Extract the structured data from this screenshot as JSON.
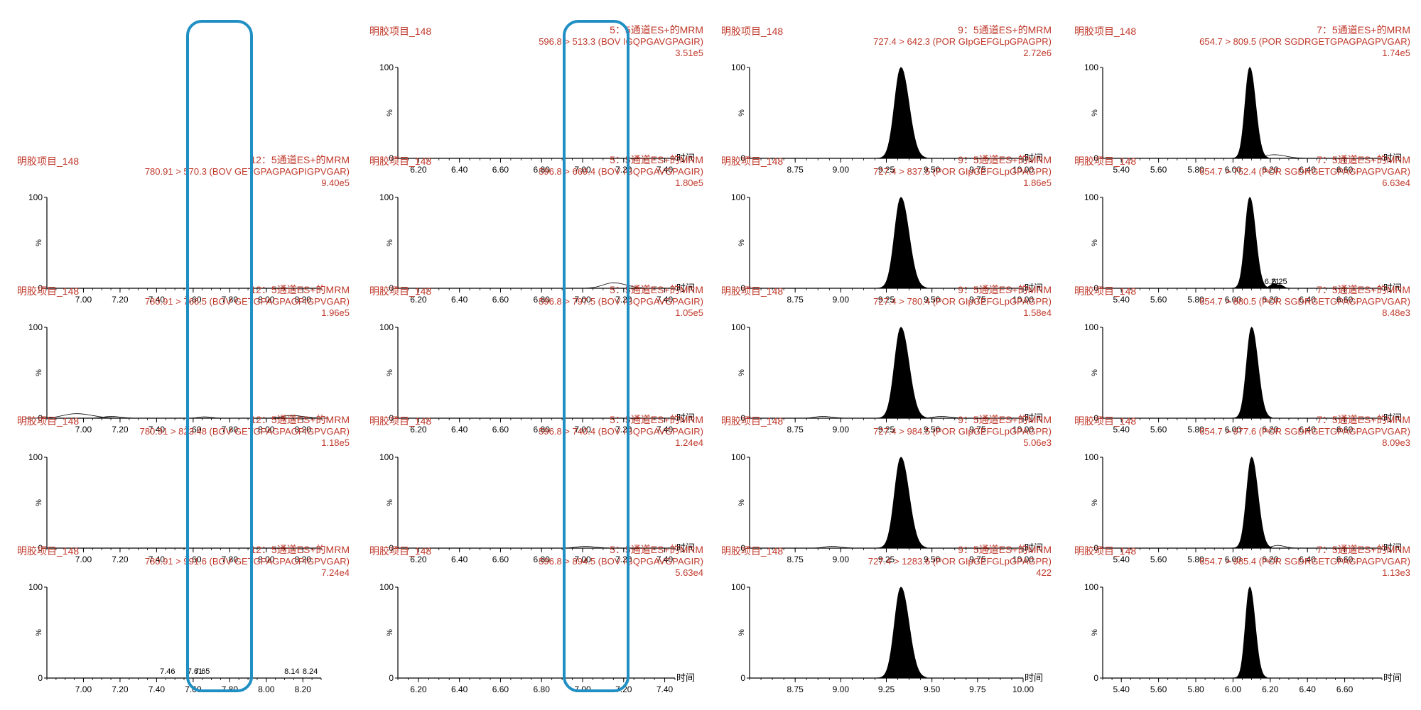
{
  "colors": {
    "header_text": "#c0392b",
    "peak_fill": "#000000",
    "axis": "#000000",
    "highlight_box": "#1f8fc4"
  },
  "chart_data": [
    {
      "column": 0,
      "row": 1,
      "type": "area",
      "sample": "明胶项目_148",
      "channel": "12：5通道ES+的MRM",
      "transition": "780.91 > 570.3 (BOV GETGPAGPAGPIGPVGAR)",
      "intensity": "9.40e5",
      "xlabel": "",
      "ylabel": "%",
      "ylim": [
        0,
        100
      ],
      "xlim": [
        6.8,
        8.3
      ],
      "xticks": [
        "7.00",
        "7.20",
        "7.40",
        "7.60",
        "7.80",
        "8.00",
        "8.20"
      ],
      "yticks": [
        "0",
        "100"
      ],
      "peaks": [],
      "peak_labels": []
    },
    {
      "column": 0,
      "row": 2,
      "type": "area",
      "sample": "明胶项目_148",
      "channel": "12：5通道ES+的MRM",
      "transition": "780.91 > 766.5 (BOV GETGPAGPAGPIGPVGAR)",
      "intensity": "1.96e5",
      "xlabel": "",
      "ylabel": "%",
      "ylim": [
        0,
        100
      ],
      "xlim": [
        6.8,
        8.3
      ],
      "xticks": [
        "7.00",
        "7.20",
        "7.40",
        "7.60",
        "7.80",
        "8.00",
        "8.20"
      ],
      "yticks": [
        "0",
        "100"
      ],
      "peaks": [
        {
          "x": 6.96,
          "h": 5,
          "w": 0.07,
          "fill": false
        },
        {
          "x": 7.15,
          "h": 2,
          "w": 0.04,
          "fill": false
        },
        {
          "x": 7.66,
          "h": 1.5,
          "w": 0.03,
          "fill": false
        },
        {
          "x": 8.14,
          "h": 3,
          "w": 0.05,
          "fill": false
        }
      ],
      "peak_labels": []
    },
    {
      "column": 0,
      "row": 3,
      "type": "area",
      "sample": "明胶项目_148",
      "channel": "12：5通道ES+的MRM",
      "transition": "780.91 > 823.48 (BOV GETGPAGPAGPIGPVGAR)",
      "intensity": "1.18e5",
      "xlabel": "",
      "ylabel": "%",
      "ylim": [
        0,
        100
      ],
      "xlim": [
        6.8,
        8.3
      ],
      "xticks": [
        "7.00",
        "7.20",
        "7.40",
        "7.60",
        "7.80",
        "8.00",
        "8.20"
      ],
      "yticks": [
        "0",
        "100"
      ],
      "peaks": [],
      "peak_labels": []
    },
    {
      "column": 0,
      "row": 4,
      "type": "area",
      "sample": "明胶项目_148",
      "channel": "12：5通道ES+的MRM",
      "transition": "780.91 > 991.6 (BOV GETGPAGPAGPIGPVGAR)",
      "intensity": "7.24e4",
      "xlabel": "",
      "ylabel": "%",
      "ylim": [
        0,
        100
      ],
      "xlim": [
        6.8,
        8.3
      ],
      "xticks": [
        "7.00",
        "7.20",
        "7.40",
        "7.60",
        "7.80",
        "8.00",
        "8.20"
      ],
      "yticks": [
        "0",
        "100"
      ],
      "peaks": [],
      "peak_labels": [
        {
          "x": 7.46,
          "text": "7.46"
        },
        {
          "x": 7.61,
          "text": "7.61"
        },
        {
          "x": 7.65,
          "text": "7.65"
        },
        {
          "x": 8.14,
          "text": "8.14"
        },
        {
          "x": 8.24,
          "text": "8.24"
        }
      ]
    },
    {
      "column": 1,
      "row": 0,
      "type": "area",
      "sample": "明胶项目_148",
      "channel": "5：5通道ES+的MRM",
      "transition": "596.8 > 513.3 (BOV IGQPGAVGPAGIR)",
      "intensity": "3.51e5",
      "xlabel": "时间",
      "ylabel": "%",
      "ylim": [
        0,
        100
      ],
      "xlim": [
        6.1,
        7.45
      ],
      "xticks": [
        "6.20",
        "6.40",
        "6.60",
        "6.80",
        "7.00",
        "7.20",
        "7.40"
      ],
      "yticks": [
        "0",
        "100"
      ],
      "peaks": [],
      "peak_labels": []
    },
    {
      "column": 1,
      "row": 1,
      "type": "area",
      "sample": "明胶项目_148",
      "channel": "5：5通道ES+的MRM",
      "transition": "596.8 > 669.4 (BOV IGQPGAVGPAGIR)",
      "intensity": "1.80e5",
      "xlabel": "时间",
      "ylabel": "%",
      "ylim": [
        0,
        100
      ],
      "xlim": [
        6.1,
        7.45
      ],
      "xticks": [
        "6.20",
        "6.40",
        "6.60",
        "6.80",
        "7.00",
        "7.20",
        "7.40"
      ],
      "yticks": [
        "0",
        "100"
      ],
      "peaks": [
        {
          "x": 7.15,
          "h": 6,
          "w": 0.05,
          "fill": false
        }
      ],
      "peak_labels": []
    },
    {
      "column": 1,
      "row": 2,
      "type": "area",
      "sample": "明胶项目_148",
      "channel": "5：5通道ES+的MRM",
      "transition": "596.8 > 797.5 (BOV IGQPGAVGPAGIR)",
      "intensity": "1.05e5",
      "xlabel": "时间",
      "ylabel": "%",
      "ylim": [
        0,
        100
      ],
      "xlim": [
        6.1,
        7.45
      ],
      "xticks": [
        "6.20",
        "6.40",
        "6.60",
        "6.80",
        "7.00",
        "7.20",
        "7.40"
      ],
      "yticks": [
        "0",
        "100"
      ],
      "peaks": [],
      "peak_labels": []
    },
    {
      "column": 1,
      "row": 3,
      "type": "area",
      "sample": "明胶项目_148",
      "channel": "5：5通道ES+的MRM",
      "transition": "596.8 > 740.4 (BOV IGQPGAVGPAGIR)",
      "intensity": "1.24e4",
      "xlabel": "时间",
      "ylabel": "%",
      "ylim": [
        0,
        100
      ],
      "xlim": [
        6.1,
        7.45
      ],
      "xticks": [
        "6.20",
        "6.40",
        "6.60",
        "6.80",
        "7.00",
        "7.20",
        "7.40"
      ],
      "yticks": [
        "0",
        "100"
      ],
      "peaks": [
        {
          "x": 7.01,
          "h": 2,
          "w": 0.04,
          "fill": false
        }
      ],
      "peak_labels": []
    },
    {
      "column": 1,
      "row": 4,
      "type": "area",
      "sample": "明胶项目_148",
      "channel": "5：5通道ES+的MRM",
      "transition": "596.8 > 894.5 (BOV IGQPGAVGPAGIR)",
      "intensity": "5.63e4",
      "xlabel": "时间",
      "ylabel": "%",
      "ylim": [
        0,
        100
      ],
      "xlim": [
        6.1,
        7.45
      ],
      "xticks": [
        "6.20",
        "6.40",
        "6.60",
        "6.80",
        "7.00",
        "7.20",
        "7.40"
      ],
      "yticks": [
        "0",
        "100"
      ],
      "peaks": [],
      "peak_labels": []
    },
    {
      "column": 2,
      "row": 0,
      "type": "area",
      "sample": "明胶项目_148",
      "channel": "9：5通道ES+的MRM",
      "transition": "727.4 > 642.3 (POR GIpGEFGLpGPAGPR)",
      "intensity": "2.72e6",
      "xlabel": "时间",
      "ylabel": "%",
      "ylim": [
        0,
        100
      ],
      "xlim": [
        8.5,
        10.0
      ],
      "xticks": [
        "8.75",
        "9.00",
        "9.25",
        "9.50",
        "9.75",
        "10.00"
      ],
      "yticks": [
        "0",
        "100"
      ],
      "peaks": [
        {
          "x": 9.33,
          "h": 100,
          "w": 0.035,
          "fill": true
        }
      ],
      "peak_labels": []
    },
    {
      "column": 2,
      "row": 1,
      "type": "area",
      "sample": "明胶项目_148",
      "channel": "9：5通道ES+的MRM",
      "transition": "727.4 > 837.5 (POR GIpGEFGLpGPAGPR)",
      "intensity": "1.86e5",
      "xlabel": "时间",
      "ylabel": "%",
      "ylim": [
        0,
        100
      ],
      "xlim": [
        8.5,
        10.0
      ],
      "xticks": [
        "8.75",
        "9.00",
        "9.25",
        "9.50",
        "9.75",
        "10.00"
      ],
      "yticks": [
        "0",
        "100"
      ],
      "peaks": [
        {
          "x": 9.33,
          "h": 100,
          "w": 0.035,
          "fill": true
        }
      ],
      "peak_labels": []
    },
    {
      "column": 2,
      "row": 2,
      "type": "area",
      "sample": "明胶项目_148",
      "channel": "9：5通道ES+的MRM",
      "transition": "727.4 > 780.4 (POR GIpGEFGLpGPAGPR)",
      "intensity": "1.58e4",
      "xlabel": "时间",
      "ylabel": "%",
      "ylim": [
        0,
        100
      ],
      "xlim": [
        8.5,
        10.0
      ],
      "xticks": [
        "8.75",
        "9.00",
        "9.25",
        "9.50",
        "9.75",
        "10.00"
      ],
      "yticks": [
        "0",
        "100"
      ],
      "peaks": [
        {
          "x": 9.33,
          "h": 100,
          "w": 0.035,
          "fill": true
        },
        {
          "x": 8.9,
          "h": 2,
          "w": 0.04,
          "fill": false
        },
        {
          "x": 9.55,
          "h": 2,
          "w": 0.04,
          "fill": false
        }
      ],
      "peak_labels": []
    },
    {
      "column": 2,
      "row": 3,
      "type": "area",
      "sample": "明胶项目_148",
      "channel": "9：5通道ES+的MRM",
      "transition": "727.4 > 984.5 (POR GIpGEFGLpGPAGPR)",
      "intensity": "5.06e3",
      "xlabel": "时间",
      "ylabel": "%",
      "ylim": [
        0,
        100
      ],
      "xlim": [
        8.5,
        10.0
      ],
      "xticks": [
        "8.75",
        "9.00",
        "9.25",
        "9.50",
        "9.75",
        "10.00"
      ],
      "yticks": [
        "0",
        "100"
      ],
      "peaks": [
        {
          "x": 9.33,
          "h": 100,
          "w": 0.035,
          "fill": true
        },
        {
          "x": 8.95,
          "h": 2,
          "w": 0.04,
          "fill": false
        }
      ],
      "peak_labels": []
    },
    {
      "column": 2,
      "row": 4,
      "type": "area",
      "sample": "明胶项目_148",
      "channel": "9：5通道ES+的MRM",
      "transition": "727.4 > 1283.6 (POR GIpGEFGLpGPAGPR)",
      "intensity": "422",
      "xlabel": "时间",
      "ylabel": "%",
      "ylim": [
        0,
        100
      ],
      "xlim": [
        8.5,
        10.0
      ],
      "xticks": [
        "8.75",
        "9.00",
        "9.25",
        "9.50",
        "9.75",
        "10.00"
      ],
      "yticks": [
        "0",
        "100"
      ],
      "peaks": [
        {
          "x": 9.33,
          "h": 100,
          "w": 0.035,
          "fill": true
        }
      ],
      "peak_labels": []
    },
    {
      "column": 3,
      "row": 0,
      "type": "area",
      "sample": "明胶项目_148",
      "channel": "7：5通道ES+的MRM",
      "transition": "654.7 > 809.5 (POR SGDRGETGPAGPAGPVGAR)",
      "intensity": "1.74e5",
      "xlabel": "时间",
      "ylabel": "%",
      "ylim": [
        0,
        100
      ],
      "xlim": [
        5.3,
        6.8
      ],
      "xticks": [
        "5.40",
        "5.60",
        "5.80",
        "6.00",
        "6.20",
        "6.40",
        "6.60"
      ],
      "yticks": [
        "0",
        "100"
      ],
      "peaks": [
        {
          "x": 6.09,
          "h": 100,
          "w": 0.025,
          "fill": true
        },
        {
          "x": 6.22,
          "h": 4,
          "w": 0.05,
          "fill": false
        }
      ],
      "peak_labels": []
    },
    {
      "column": 3,
      "row": 1,
      "type": "area",
      "sample": "明胶项目_148",
      "channel": "7：5通道ES+的MRM",
      "transition": "654.7 > 752.4 (POR SGDRGETGPAGPAGPVGAR)",
      "intensity": "6.63e4",
      "xlabel": "时间",
      "ylabel": "%",
      "ylim": [
        0,
        100
      ],
      "xlim": [
        5.3,
        6.8
      ],
      "xticks": [
        "5.40",
        "5.60",
        "5.80",
        "6.00",
        "6.20",
        "6.40",
        "6.60"
      ],
      "yticks": [
        "0",
        "100"
      ],
      "peaks": [
        {
          "x": 6.09,
          "h": 100,
          "w": 0.025,
          "fill": true
        },
        {
          "x": 6.22,
          "h": 5,
          "w": 0.02,
          "fill": true
        },
        {
          "x": 6.25,
          "h": 4,
          "w": 0.015,
          "fill": true
        }
      ],
      "peak_labels": [
        {
          "x": 6.21,
          "text": "6.21"
        },
        {
          "x": 6.25,
          "text": "6.25"
        }
      ]
    },
    {
      "column": 3,
      "row": 2,
      "type": "area",
      "sample": "明胶项目_148",
      "channel": "7：5通道ES+的MRM",
      "transition": "654.7 > 880.5 (POR SGDRGETGPAGPAGPVGAR)",
      "intensity": "8.48e3",
      "xlabel": "时间",
      "ylabel": "%",
      "ylim": [
        0,
        100
      ],
      "xlim": [
        5.3,
        6.8
      ],
      "xticks": [
        "5.40",
        "5.60",
        "5.80",
        "6.00",
        "6.20",
        "6.40",
        "6.60"
      ],
      "yticks": [
        "0",
        "100"
      ],
      "peaks": [
        {
          "x": 6.1,
          "h": 100,
          "w": 0.027,
          "fill": true
        }
      ],
      "peak_labels": []
    },
    {
      "column": 3,
      "row": 3,
      "type": "area",
      "sample": "明胶项目_148",
      "channel": "7：5通道ES+的MRM",
      "transition": "654.7 > 977.6 (POR SGDRGETGPAGPAGPVGAR)",
      "intensity": "8.09e3",
      "xlabel": "时间",
      "ylabel": "%",
      "ylim": [
        0,
        100
      ],
      "xlim": [
        5.3,
        6.8
      ],
      "xticks": [
        "5.40",
        "5.60",
        "5.80",
        "6.00",
        "6.20",
        "6.40",
        "6.60"
      ],
      "yticks": [
        "0",
        "100"
      ],
      "peaks": [
        {
          "x": 6.1,
          "h": 100,
          "w": 0.027,
          "fill": true
        },
        {
          "x": 6.24,
          "h": 3,
          "w": 0.03,
          "fill": false
        }
      ],
      "peak_labels": []
    },
    {
      "column": 3,
      "row": 4,
      "type": "area",
      "sample": "明胶项目_148",
      "channel": "7：5通道ES+的MRM",
      "transition": "654.7 > 985.4 (POR SGDRGETGPAGPAGPVGAR)",
      "intensity": "1.13e3",
      "xlabel": "时间",
      "ylabel": "%",
      "ylim": [
        0,
        100
      ],
      "xlim": [
        5.3,
        6.8
      ],
      "xticks": [
        "5.40",
        "5.60",
        "5.80",
        "6.00",
        "6.20",
        "6.40",
        "6.60"
      ],
      "yticks": [
        "0",
        "100"
      ],
      "peaks": [
        {
          "x": 6.09,
          "h": 100,
          "w": 0.023,
          "fill": true
        }
      ],
      "peak_labels": []
    }
  ]
}
